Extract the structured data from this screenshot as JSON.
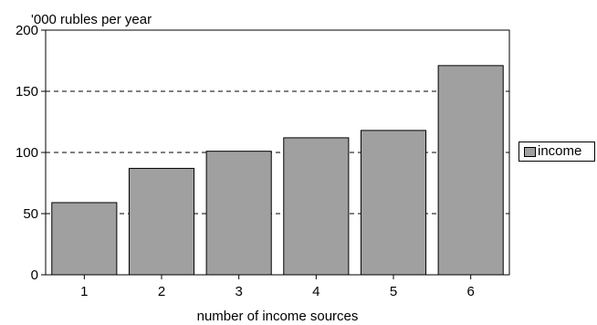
{
  "chart_data": {
    "type": "bar",
    "categories": [
      "1",
      "2",
      "3",
      "4",
      "5",
      "6"
    ],
    "values": [
      59,
      87,
      101,
      112,
      118,
      171
    ],
    "series": [
      {
        "name": "income",
        "values": [
          59,
          87,
          101,
          112,
          118,
          171
        ]
      }
    ],
    "title": "'000 rubles per year",
    "xlabel": "number of income sources",
    "ylabel": "",
    "ylim": [
      0,
      200
    ],
    "yticks": [
      "0",
      "50",
      "100",
      "150",
      "200"
    ],
    "grid": true,
    "legend": "right",
    "colors": {
      "bar": "#a0a0a0",
      "grid": "#000000"
    }
  }
}
